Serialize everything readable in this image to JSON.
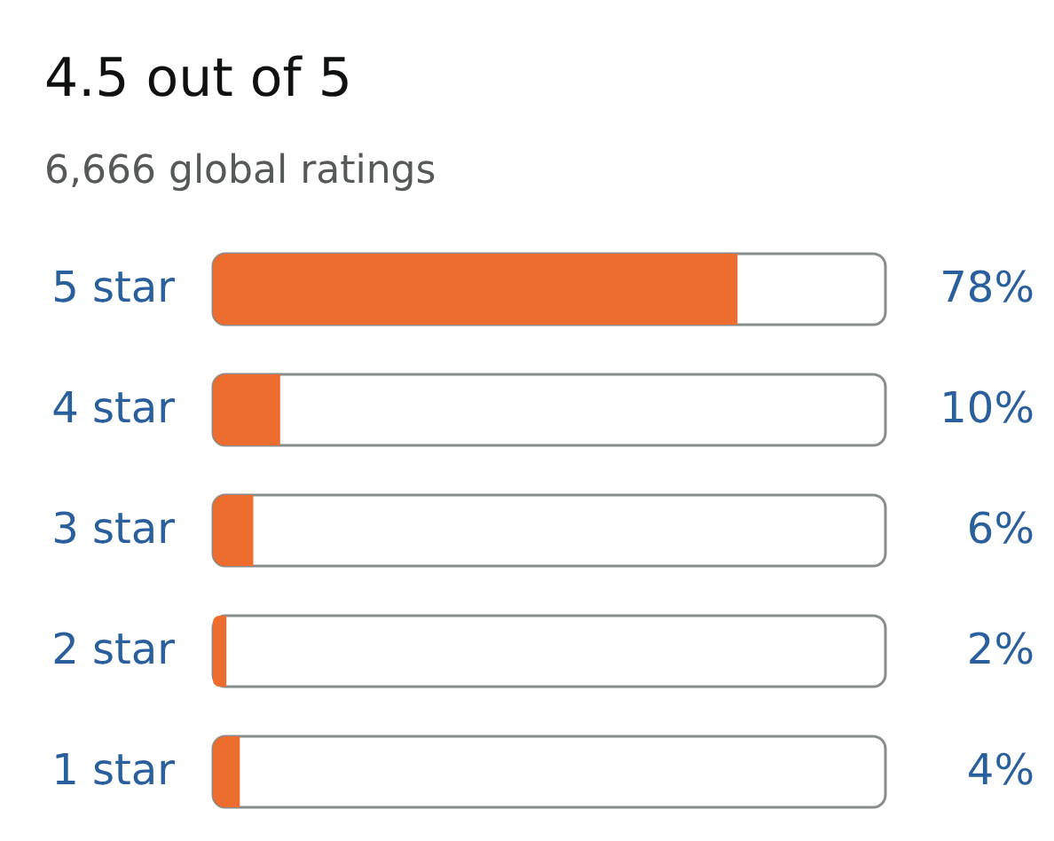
{
  "chart_data": {
    "type": "bar",
    "orientation": "horizontal",
    "title": "4.5 out of 5",
    "subtitle": "6,666 global ratings",
    "categories": [
      "5 star",
      "4 star",
      "3 star",
      "2 star",
      "1 star"
    ],
    "values": [
      78,
      10,
      6,
      2,
      4
    ],
    "color": "#ec6d2d",
    "value_labels": [
      "78%",
      "10%",
      "6%",
      "2%",
      "4%"
    ],
    "xlim": [
      0,
      100
    ],
    "tick_labels": "y"
  }
}
